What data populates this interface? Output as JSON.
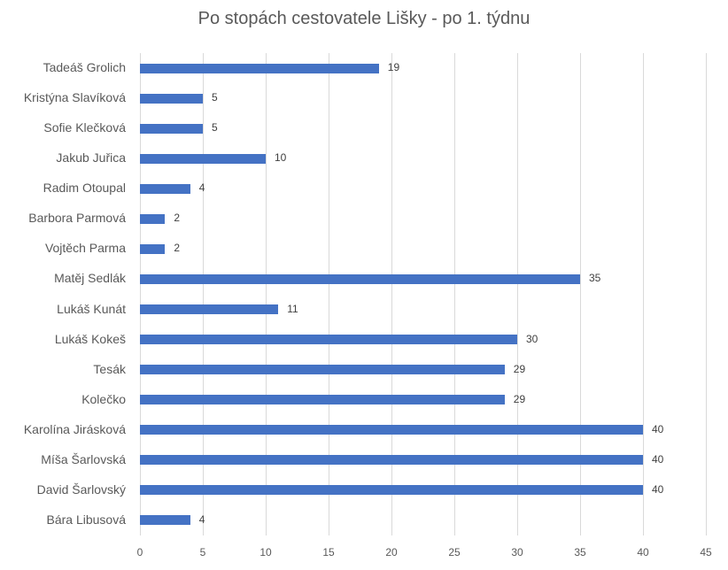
{
  "chart_data": {
    "type": "bar",
    "orientation": "horizontal",
    "title": "Po stopách cestovatele Lišky - po 1. týdnu",
    "xlabel": "",
    "ylabel": "",
    "xlim": [
      0,
      45
    ],
    "x_ticks": [
      0,
      5,
      10,
      15,
      20,
      25,
      30,
      35,
      40,
      45
    ],
    "grid": true,
    "legend": null,
    "bar_color": "#4472c4",
    "categories": [
      "Tadeáš Grolich",
      "Kristýna Slavíková",
      "Sofie Klečková",
      "Jakub Juřica",
      "Radim Otoupal",
      "Barbora Parmová",
      "Vojtěch Parma",
      "Matěj Sedlák",
      "Lukáš Kunát",
      "Lukáš Kokeš",
      "Tesák",
      "Kolečko",
      "Karolína Jirásková",
      "Míša Šarlovská",
      "David Šarlovský",
      "Bára Libusová"
    ],
    "values": [
      19,
      5,
      5,
      10,
      4,
      2,
      2,
      35,
      11,
      30,
      29,
      29,
      40,
      40,
      40,
      4
    ]
  }
}
